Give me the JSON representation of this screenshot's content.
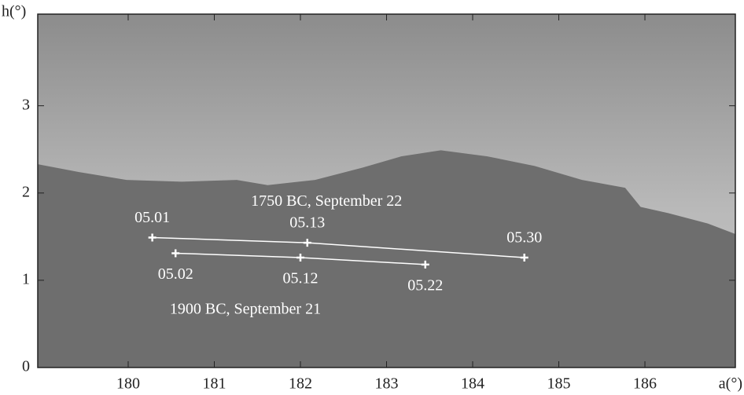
{
  "chart_data": {
    "type": "line",
    "x_label": "a(°)",
    "y_label": "h(°)",
    "xlim": [
      178.95,
      187.05
    ],
    "xticks": [
      180,
      181,
      182,
      183,
      184,
      185,
      186
    ],
    "ylim": [
      0,
      4.05
    ],
    "yticks": [
      0,
      1,
      2,
      3
    ],
    "horizon": {
      "color": "#6e6e6e",
      "x": [
        178.95,
        179.43,
        179.98,
        180.62,
        181.26,
        181.62,
        182.17,
        182.72,
        183.17,
        183.63,
        184.17,
        184.72,
        185.27,
        185.77,
        185.95,
        186.27,
        186.73,
        187.05
      ],
      "values": [
        2.33,
        2.24,
        2.15,
        2.13,
        2.15,
        2.09,
        2.15,
        2.29,
        2.42,
        2.49,
        2.42,
        2.31,
        2.15,
        2.06,
        1.84,
        1.77,
        1.65,
        1.53
      ]
    },
    "series": [
      {
        "name": "1750 BC, September 22",
        "color": "#ffffff",
        "x": [
          180.28,
          182.08,
          184.6
        ],
        "values": [
          1.49,
          1.43,
          1.26
        ],
        "point_labels": [
          "05.01",
          "05.13",
          "05.30"
        ]
      },
      {
        "name": "1900 BC, September 21",
        "color": "#ffffff",
        "x": [
          180.55,
          182.0,
          183.45
        ],
        "values": [
          1.31,
          1.26,
          1.18
        ],
        "point_labels": [
          "05.02",
          "05.12",
          "05.22"
        ]
      }
    ]
  }
}
